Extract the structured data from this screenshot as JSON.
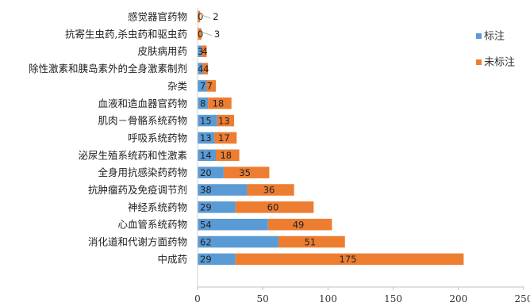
{
  "chart_data": {
    "type": "bar",
    "orientation": "horizontal",
    "stacked": true,
    "categories": [
      "感觉器官药物",
      "抗寄生虫药,杀虫药和驱虫药",
      "皮肤病用药",
      "除性激素和胰岛素外的全身激素制剂",
      "杂类",
      "血液和造血器官药物",
      "肌肉－骨骼系统药物",
      "呼吸系统药物",
      "泌尿生殖系统药和性激素",
      "全身用抗感染药药物",
      "抗肿瘤药及免疫调节剂",
      "神经系统药物",
      "心血管系统药物",
      "消化道和代谢方面药物",
      "中成药"
    ],
    "series": [
      {
        "name": "标注",
        "color": "#5b9bd5",
        "values": [
          0,
          0,
          3,
          4,
          7,
          8,
          15,
          13,
          14,
          20,
          38,
          29,
          54,
          62,
          29
        ]
      },
      {
        "name": "未标注",
        "color": "#ed7d31",
        "values": [
          2,
          3,
          4,
          4,
          7,
          18,
          13,
          17,
          18,
          35,
          36,
          60,
          49,
          51,
          175
        ]
      }
    ],
    "data_labels": [
      [
        "0",
        "2"
      ],
      [
        "0",
        "3"
      ],
      [
        "3",
        "4"
      ],
      [
        "4",
        "4"
      ],
      [
        "7",
        "7"
      ],
      [
        "8",
        "18"
      ],
      [
        "15",
        "13"
      ],
      [
        "13",
        "17"
      ],
      [
        "14",
        "18"
      ],
      [
        "20",
        "35"
      ],
      [
        "38",
        "36"
      ],
      [
        "29",
        "60"
      ],
      [
        "54",
        "49"
      ],
      [
        "62",
        "51"
      ],
      [
        "29",
        "175"
      ]
    ],
    "xlim": [
      0,
      250
    ],
    "xticks": [
      "0",
      "50",
      "100",
      "150",
      "200",
      "250"
    ],
    "grid": false,
    "legend_position": "right"
  }
}
